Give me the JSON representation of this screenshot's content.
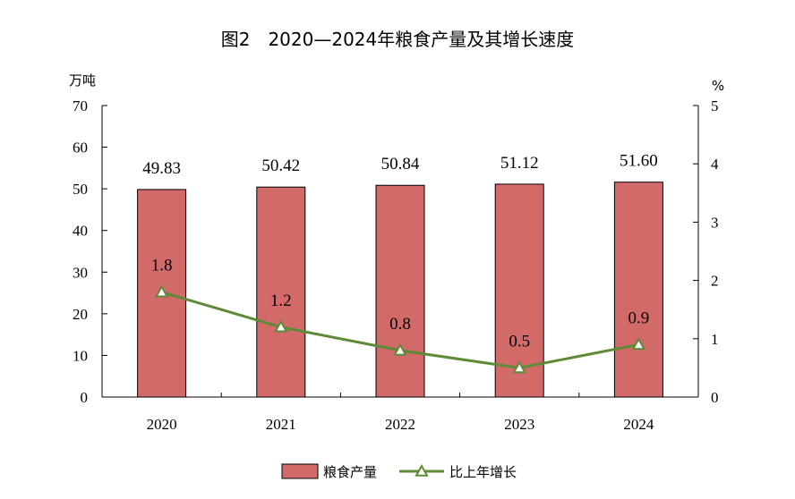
{
  "chart_data": {
    "type": "bar",
    "title": "图2　2020—2024年粮食产量及其增长速度",
    "categories": [
      "2020",
      "2021",
      "2022",
      "2023",
      "2024"
    ],
    "series": [
      {
        "name": "粮食产量",
        "type": "bar",
        "axis": "left",
        "values": [
          49.83,
          50.42,
          50.84,
          51.12,
          51.6
        ],
        "labels": [
          "49.83",
          "50.42",
          "50.84",
          "51.12",
          "51.60"
        ],
        "color": "#D26A6A"
      },
      {
        "name": "比上年增长",
        "type": "line",
        "axis": "right",
        "marker": "triangle",
        "values": [
          1.8,
          1.2,
          0.8,
          0.5,
          0.9
        ],
        "labels": [
          "1.8",
          "1.2",
          "0.8",
          "0.5",
          "0.9"
        ],
        "color": "#5E8B37"
      }
    ],
    "y_left": {
      "label": "万吨",
      "min": 0,
      "max": 70,
      "ticks": [
        "0",
        "10",
        "20",
        "30",
        "40",
        "50",
        "60",
        "70"
      ]
    },
    "y_right": {
      "label": "%",
      "min": 0,
      "max": 5,
      "ticks": [
        "0",
        "1",
        "2",
        "3",
        "4",
        "5"
      ]
    },
    "grid": false,
    "legend_position": "bottom-center"
  }
}
